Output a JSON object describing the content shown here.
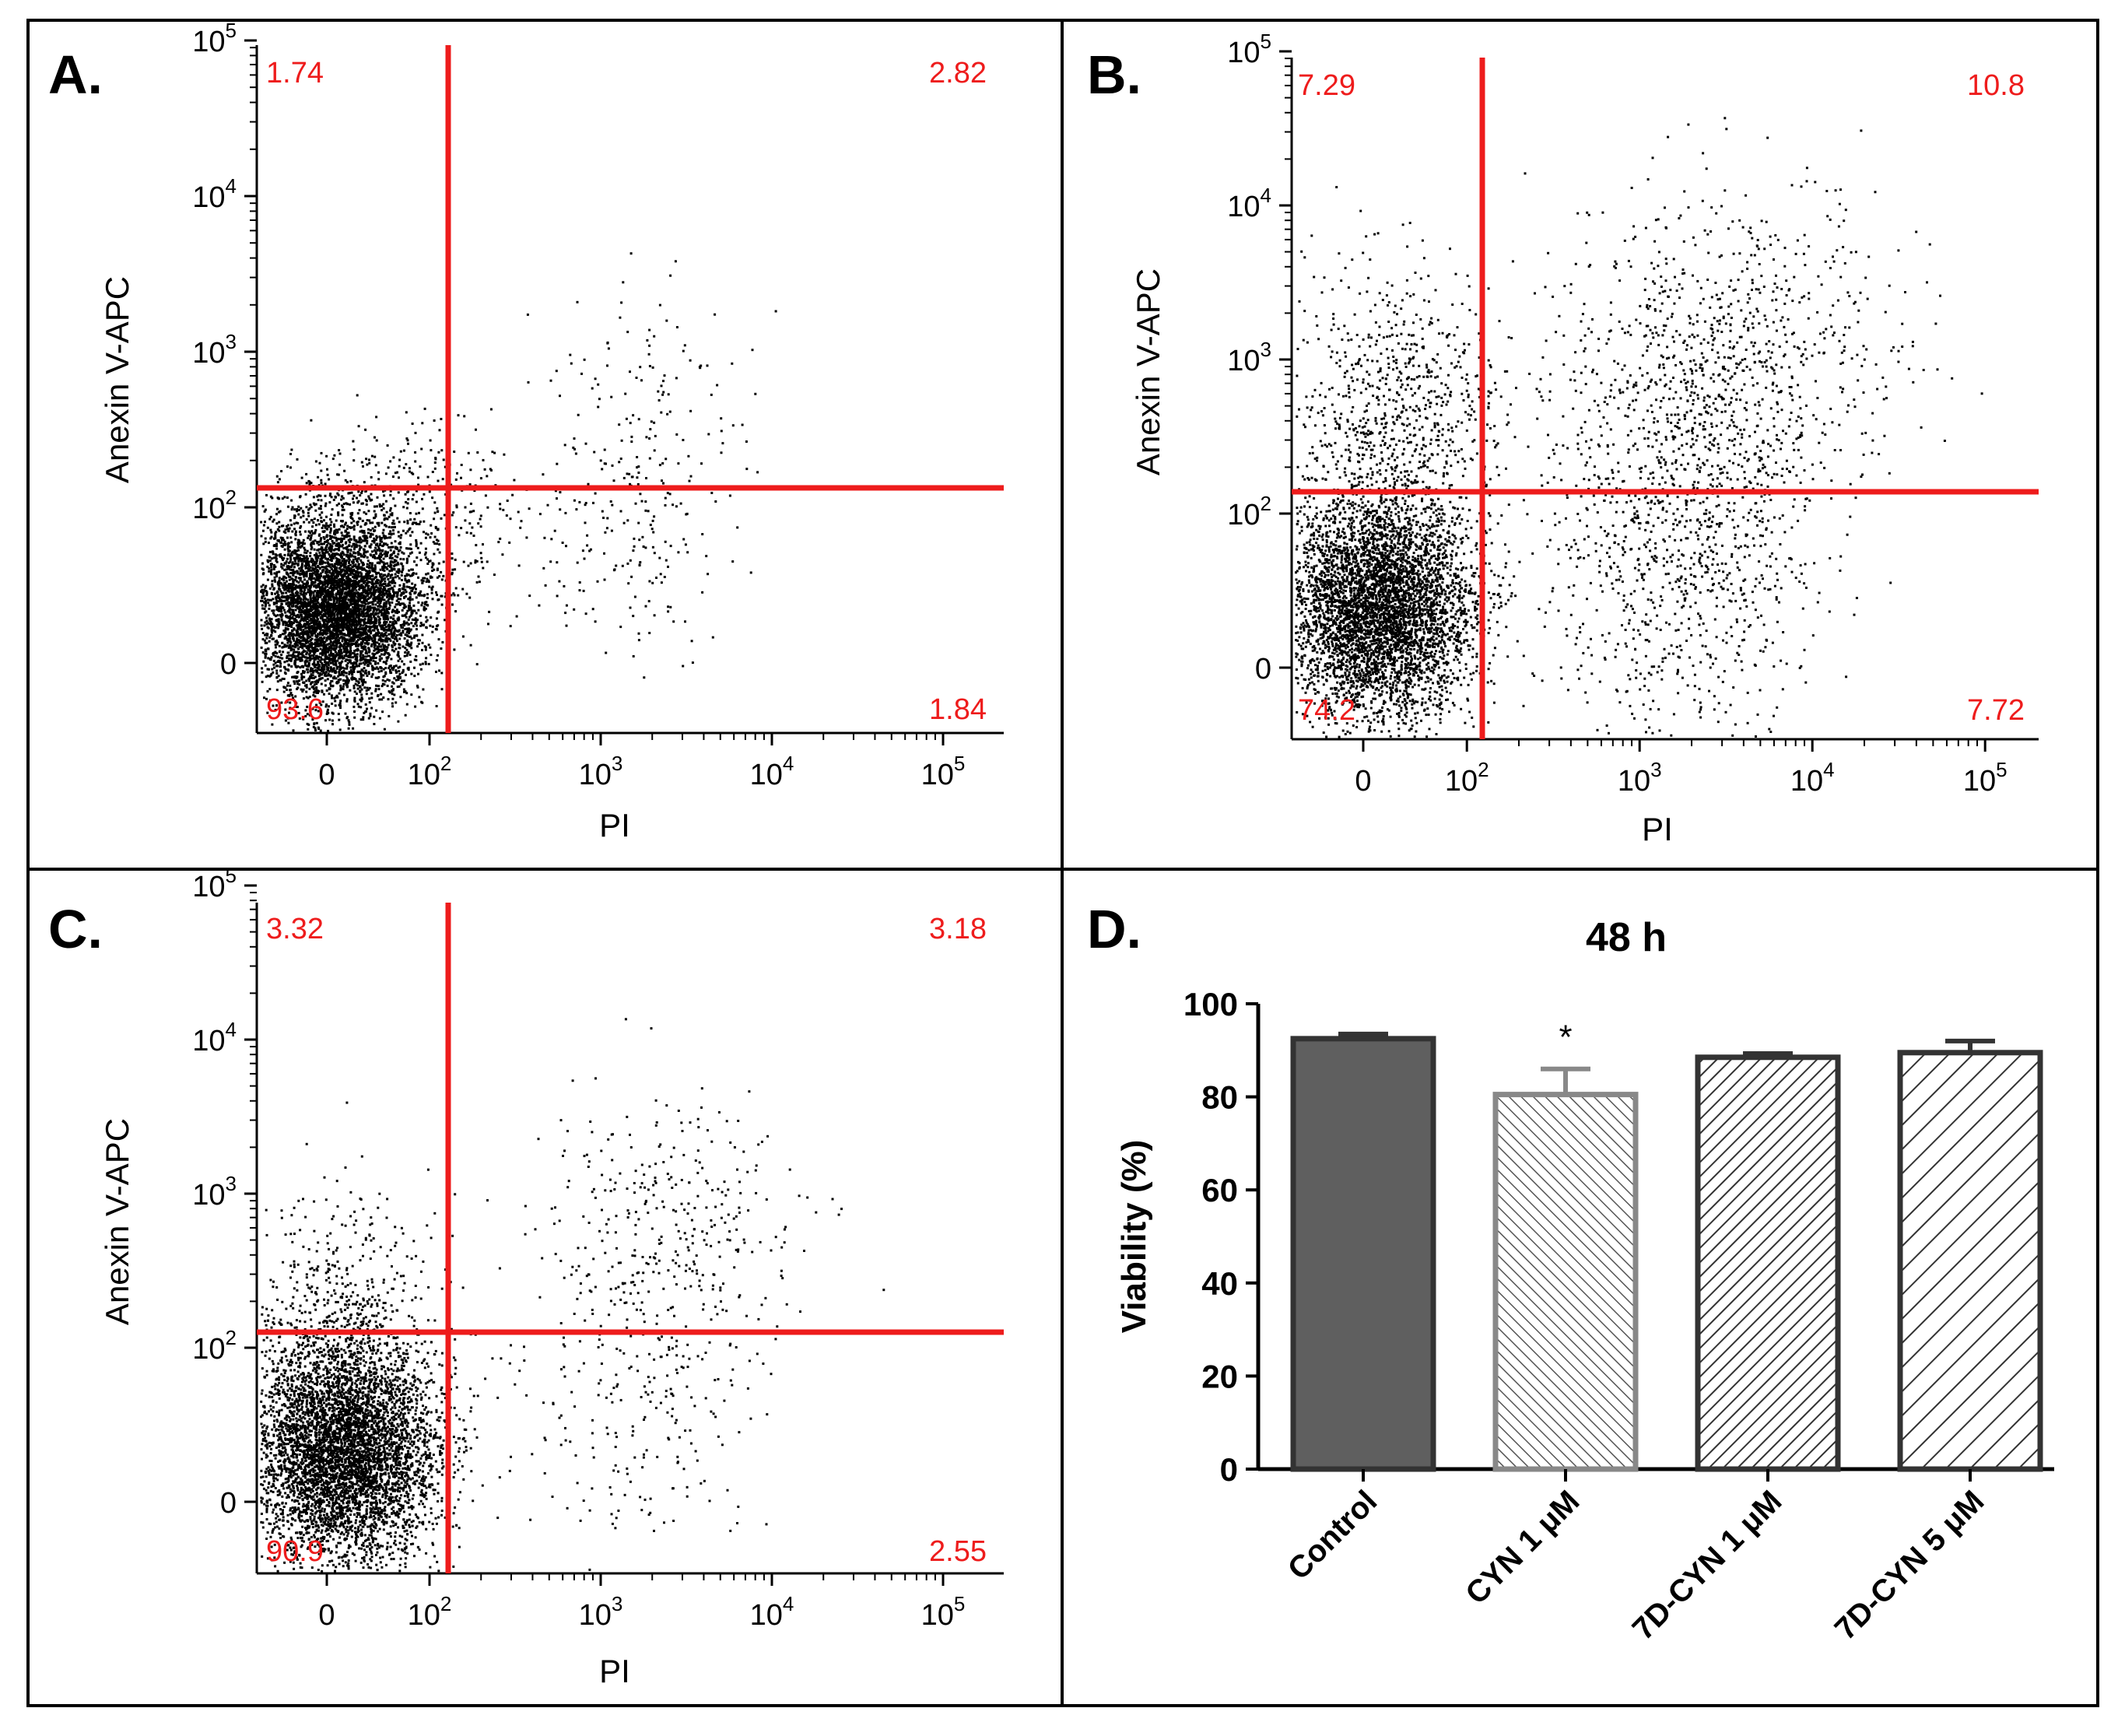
{
  "colors": {
    "gate": "#ee1c1c",
    "dots": "#000000",
    "border": "#000000",
    "control_bar": "#5f5f5f",
    "cyn_bar_edge": "#888888",
    "hatched_bar_edge": "#333333"
  },
  "chart_data": [
    {
      "type": "scatter",
      "panel_label": "A.",
      "xlabel": "PI",
      "ylabel": "Anexin V-APC",
      "x_tick_labels": [
        "0",
        "10^2",
        "10^3",
        "10^4",
        "10^5"
      ],
      "y_tick_labels": [
        "0",
        "10^2",
        "10^3",
        "10^4",
        "10^5"
      ],
      "quadrants": {
        "upper_left": "1.74",
        "upper_right": "2.82",
        "lower_left": "93.6",
        "lower_right": "1.84"
      }
    },
    {
      "type": "scatter",
      "panel_label": "B.",
      "xlabel": "PI",
      "ylabel": "Anexin V-APC",
      "x_tick_labels": [
        "0",
        "10^2",
        "10^3",
        "10^4",
        "10^5"
      ],
      "y_tick_labels": [
        "0",
        "10^2",
        "10^3",
        "10^4",
        "10^5"
      ],
      "quadrants": {
        "upper_left": "7.29",
        "upper_right": "10.8",
        "lower_left": "74.2",
        "lower_right": "7.72"
      }
    },
    {
      "type": "scatter",
      "panel_label": "C.",
      "xlabel": "PI",
      "ylabel": "Anexin V-APC",
      "x_tick_labels": [
        "0",
        "10^2",
        "10^3",
        "10^4",
        "10^5"
      ],
      "y_tick_labels": [
        "0",
        "10^2",
        "10^3",
        "10^4",
        "10^5"
      ],
      "quadrants": {
        "upper_left": "3.32",
        "upper_right": "3.18",
        "lower_left": "90.9",
        "lower_right": "2.55"
      }
    },
    {
      "type": "bar",
      "panel_label": "D.",
      "title": "48 h",
      "xlabel": "",
      "ylabel": "Viability (%)",
      "ylim": [
        0,
        100
      ],
      "yticks": [
        0,
        20,
        40,
        60,
        80,
        100
      ],
      "categories": [
        "Control",
        "CYN 1 μM",
        "7D-CYN 1 μM",
        "7D-CYN 5 μM"
      ],
      "values": [
        92.5,
        80.5,
        88.5,
        89.5
      ],
      "errors": [
        1.0,
        5.5,
        0.8,
        2.5
      ],
      "significance": [
        "",
        "*",
        "",
        ""
      ]
    }
  ]
}
